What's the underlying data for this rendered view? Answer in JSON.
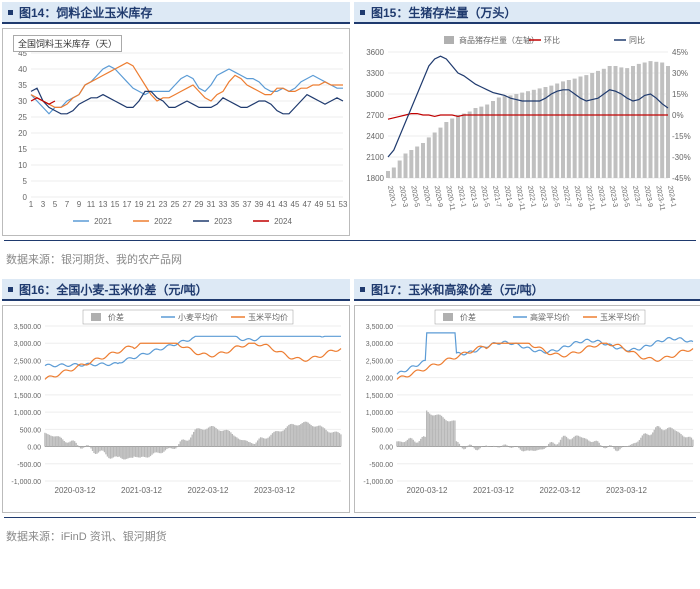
{
  "source_top": "数据来源：银河期货、我的农产品网",
  "source_bot": "数据来源：iFinD 资讯、银河期货",
  "fig14": {
    "title": "图14：饲料企业玉米库存",
    "sub_legend_title": "全国饲料玉米库存（天）",
    "xticks": [
      1,
      3,
      5,
      7,
      9,
      11,
      13,
      15,
      17,
      19,
      21,
      23,
      25,
      27,
      29,
      31,
      33,
      35,
      37,
      39,
      41,
      43,
      45,
      47,
      49,
      51,
      53
    ],
    "yticks": [
      0,
      5,
      10,
      15,
      20,
      25,
      30,
      35,
      40,
      45
    ],
    "ylim": [
      0,
      45
    ],
    "series": [
      {
        "label": "2021",
        "color": "#5b9bd5",
        "vals": [
          32,
          30,
          28,
          26,
          28,
          28,
          30,
          31,
          32,
          35,
          36,
          38,
          40,
          41,
          40,
          38,
          36,
          34,
          33,
          32,
          33,
          33,
          33,
          33,
          35,
          37,
          38,
          37,
          34,
          33,
          35,
          38,
          39,
          40,
          39,
          38,
          37,
          37,
          36,
          34,
          33,
          33,
          34,
          33,
          34,
          36,
          37,
          38,
          37,
          36,
          35,
          34,
          34
        ]
      },
      {
        "label": "2022",
        "color": "#ed7d31",
        "vals": [
          32,
          31,
          30,
          29,
          28,
          28,
          29,
          31,
          32,
          35,
          36,
          37,
          38,
          39,
          40,
          41,
          42,
          41,
          38,
          35,
          32,
          30,
          31,
          31,
          32,
          33,
          34,
          35,
          33,
          31,
          30,
          32,
          33,
          36,
          38,
          37,
          35,
          34,
          33,
          32,
          32,
          34,
          34,
          33,
          33,
          34,
          34,
          35,
          35,
          36,
          35,
          35,
          35
        ]
      },
      {
        "label": "2023",
        "color": "#1f3a6e",
        "vals": [
          33,
          34,
          30,
          28,
          27,
          26,
          26,
          27,
          29,
          30,
          31,
          31,
          32,
          31,
          30,
          29,
          28,
          28,
          30,
          33,
          33,
          31,
          30,
          28,
          28,
          29,
          30,
          29,
          28,
          28,
          28,
          29,
          31,
          30,
          29,
          28,
          28,
          29,
          30,
          30,
          29,
          27,
          26,
          26,
          28,
          30,
          32,
          31,
          30,
          29,
          30,
          31,
          30
        ]
      },
      {
        "label": "2024",
        "color": "#c00000",
        "vals": [
          30,
          31,
          30,
          29,
          30
        ]
      }
    ]
  },
  "fig15": {
    "title": "图15：生猪存栏量（万头）",
    "legend": [
      {
        "label": "商品猪存栏量（左轴）",
        "color": "#b0b0b0",
        "type": "bar"
      },
      {
        "label": "环比",
        "color": "#c00000",
        "type": "line"
      },
      {
        "label": "同比",
        "color": "#1f3a6e",
        "type": "line"
      }
    ],
    "y1": {
      "ticks": [
        1800,
        2100,
        2400,
        2700,
        3000,
        3300,
        3600
      ],
      "lim": [
        1800,
        3600
      ]
    },
    "y2": {
      "ticks": [
        -45,
        -30,
        -15,
        0,
        15,
        30,
        45
      ],
      "lim": [
        -45,
        45
      ]
    },
    "xlabels": [
      "2020-1",
      "2020-3",
      "2020-5",
      "2020-7",
      "2020-9",
      "2020-11",
      "2021-1",
      "2021-3",
      "2021-5",
      "2021-7",
      "2021-9",
      "2021-11",
      "2022-1",
      "2022-3",
      "2022-5",
      "2022-7",
      "2022-9",
      "2022-11",
      "2023-1",
      "2023-3",
      "2023-5",
      "2023-7",
      "2023-9",
      "2023-11",
      "2024-1"
    ],
    "bars": [
      1900,
      1950,
      2050,
      2150,
      2200,
      2250,
      2300,
      2380,
      2450,
      2520,
      2600,
      2650,
      2700,
      2720,
      2750,
      2800,
      2820,
      2850,
      2900,
      2950,
      2970,
      2980,
      3000,
      3020,
      3040,
      3060,
      3080,
      3100,
      3120,
      3150,
      3180,
      3200,
      3220,
      3250,
      3270,
      3300,
      3330,
      3360,
      3400,
      3400,
      3380,
      3370,
      3400,
      3430,
      3450,
      3470,
      3460,
      3450,
      3400
    ],
    "huanbi": [
      -3,
      -2,
      -1,
      0,
      1,
      1,
      0,
      0,
      -1,
      0,
      0,
      0,
      -1,
      0,
      0,
      0,
      0,
      0,
      0,
      0,
      0,
      0,
      0,
      0,
      0,
      0,
      0,
      0,
      0,
      0,
      0,
      0,
      0,
      0,
      0,
      0,
      0,
      0,
      0,
      0,
      0,
      0,
      0,
      0,
      0,
      0,
      0,
      0,
      0
    ],
    "tongbi": [
      -30,
      -25,
      -15,
      -5,
      5,
      15,
      25,
      35,
      40,
      42,
      40,
      35,
      30,
      28,
      25,
      22,
      20,
      18,
      16,
      15,
      14,
      12,
      11,
      10,
      10,
      10,
      10,
      12,
      15,
      17,
      18,
      18,
      15,
      12,
      10,
      11,
      12,
      15,
      18,
      17,
      15,
      12,
      10,
      11,
      14,
      15,
      12,
      8,
      5
    ]
  },
  "fig16": {
    "title": "图16：全国小麦-玉米价差（元/吨）",
    "legend": [
      {
        "label": "价差",
        "color": "#b0b0b0",
        "type": "bar"
      },
      {
        "label": "小麦平均价",
        "color": "#5b9bd5",
        "type": "line"
      },
      {
        "label": "玉米平均价",
        "color": "#ed7d31",
        "type": "line"
      }
    ],
    "yticks": [
      -1000,
      -500,
      0,
      500,
      1000,
      1500,
      2000,
      2500,
      3000,
      3500
    ],
    "ylim": [
      -1000,
      3500
    ],
    "xlabels": [
      "2020-03-12",
      "2021-03-12",
      "2022-03-12",
      "2023-03-12"
    ],
    "n": 200,
    "wheat": "gen",
    "corn": "gen"
  },
  "fig17": {
    "title": "图17：玉米和高粱价差（元/吨）",
    "legend": [
      {
        "label": "价差",
        "color": "#b0b0b0",
        "type": "bar"
      },
      {
        "label": "高粱平均价",
        "color": "#5b9bd5",
        "type": "line"
      },
      {
        "label": "玉米平均价",
        "color": "#ed7d31",
        "type": "line"
      }
    ],
    "yticks": [
      -1000,
      -500,
      0,
      500,
      1000,
      1500,
      2000,
      2500,
      3000,
      3500
    ],
    "ylim": [
      -1000,
      3500
    ],
    "xlabels": [
      "2020-03-12",
      "2021-03-12",
      "2022-03-12",
      "2023-03-12"
    ],
    "n": 200
  },
  "colors": {
    "accent": "#1f3a6e",
    "grid": "#e6e6e6",
    "axis": "#888"
  }
}
